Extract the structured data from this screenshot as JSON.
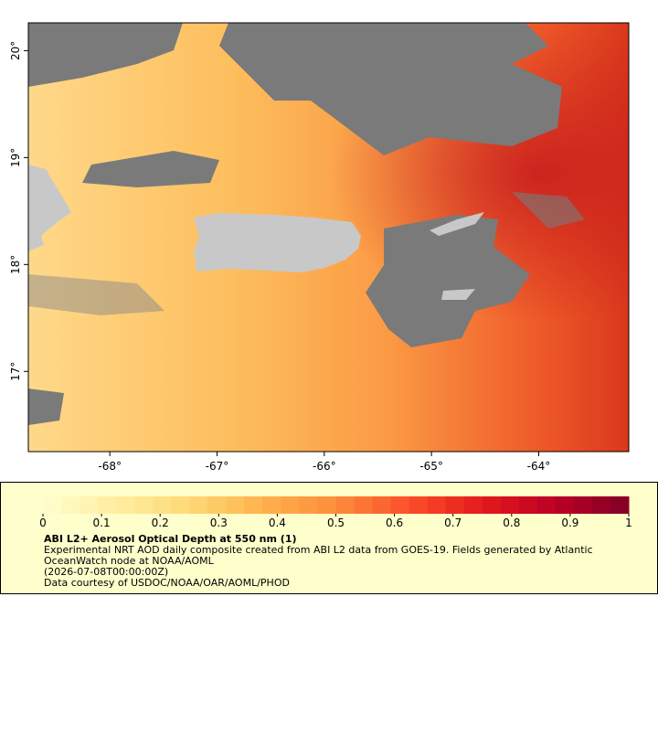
{
  "map": {
    "xlim": [
      -68.76,
      -63.16
    ],
    "ylim": [
      16.25,
      20.26
    ],
    "xticks": [
      {
        "value": -68,
        "label": "-68°"
      },
      {
        "value": -67,
        "label": "-67°"
      },
      {
        "value": -66,
        "label": "-66°"
      },
      {
        "value": -65,
        "label": "-65°"
      },
      {
        "value": -64,
        "label": "-64°"
      }
    ],
    "yticks": [
      {
        "value": 17,
        "label": "17°"
      },
      {
        "value": 18,
        "label": "18°"
      },
      {
        "value": 19,
        "label": "19°"
      },
      {
        "value": 20,
        "label": "20°"
      }
    ]
  },
  "colorbar": {
    "lim": [
      0,
      1
    ],
    "ticks": [
      0,
      0.1,
      0.2,
      0.3,
      0.4,
      0.5,
      0.6,
      0.7,
      0.8,
      0.9,
      1
    ],
    "colormap": [
      "#ffffcc",
      "#ffeda0",
      "#fed976",
      "#feb24c",
      "#fd8d3c",
      "#fc4e2a",
      "#e31a1c",
      "#bd0026",
      "#800026"
    ],
    "steps": 32
  },
  "caption": {
    "title": "ABI L2+ Aerosol Optical Depth at 550 nm (1)",
    "lines": [
      "Experimental NRT AOD daily composite created from ABI L2 data from GOES-19. Fields generated by Atlantic",
      "OceanWatch node at NOAA/AOML",
      "(2026-07-08T00:00:00Z)",
      "Data courtesy of USDOC/NOAA/OAR/AOML/PHOD"
    ]
  }
}
